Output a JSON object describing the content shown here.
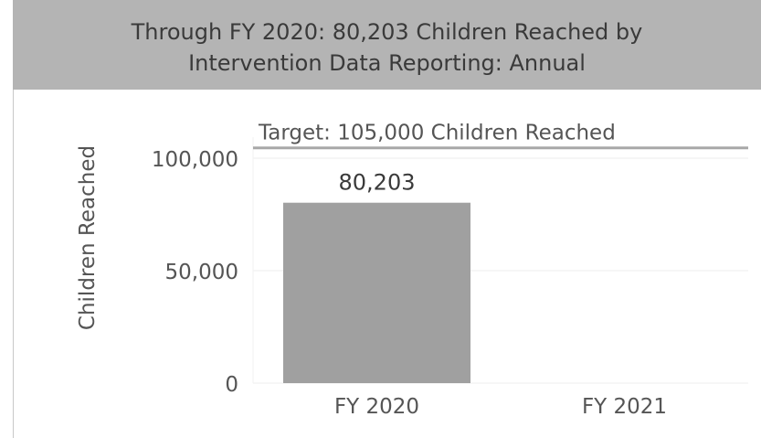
{
  "header": {
    "title_line1": "Through FY 2020: 80,203 Children Reached by",
    "title_line2": "Intervention Data Reporting: Annual"
  },
  "colors": {
    "header_bg": "#b4b4b4",
    "bar": "#a0a0a0",
    "target_line": "#a8a8a8",
    "gridline": "#ededed",
    "text": "#555555"
  },
  "chart_data": {
    "type": "bar",
    "title": "Through FY 2020: 80,203 Children Reached by Intervention Data Reporting: Annual",
    "ylabel": "Children Reached",
    "xlabel": "",
    "categories": [
      "FY 2020",
      "FY 2021"
    ],
    "values": [
      80203,
      null
    ],
    "value_labels": [
      "80,203",
      ""
    ],
    "ylim": [
      0,
      110000
    ],
    "yticks": [
      0,
      50000,
      100000
    ],
    "ytick_labels": [
      "0",
      "50,000",
      "100,000"
    ],
    "grid": true,
    "reference_line": {
      "value": 105000,
      "label": "Target: 105,000 Children Reached"
    }
  }
}
